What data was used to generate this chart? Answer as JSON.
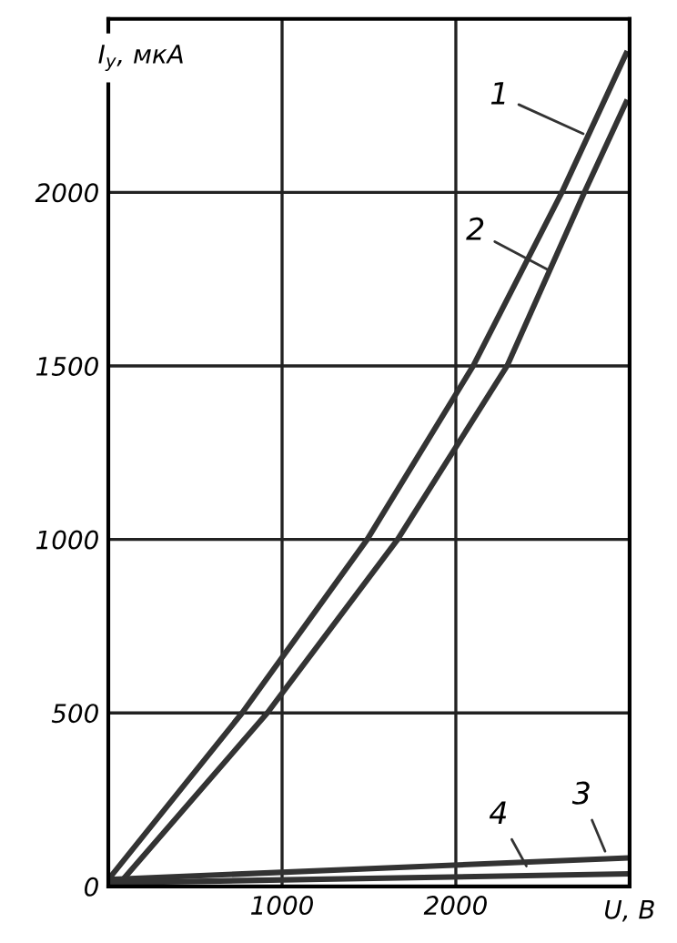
{
  "chart_data": {
    "type": "line",
    "xlabel": "U, В",
    "ylabel": "I$_{y}$, мкА",
    "xlim": [
      0,
      3000
    ],
    "ylim": [
      0,
      2500
    ],
    "xticks": [
      {
        "value": 0,
        "label": null
      },
      1000,
      2000
    ],
    "yticks": [
      0,
      500,
      1000,
      1500,
      2000
    ],
    "grid": true,
    "line_style": "solid",
    "marker": "none",
    "series": [
      {
        "color": "#333333",
        "x": [
          0,
          770,
          1490,
          2100,
          2610,
          2980
        ],
        "values": [
          20,
          500,
          1000,
          1500,
          2000,
          2400
        ]
      },
      {
        "color": "#333333",
        "x": [
          50,
          915,
          1665,
          2295,
          2740,
          2980
        ],
        "values": [
          0,
          500,
          1000,
          1500,
          2000,
          2260
        ]
      },
      {
        "color": "#333333",
        "x": [
          0,
          2980
        ],
        "values": [
          20,
          82
        ]
      },
      {
        "color": "#333333",
        "x": [
          0,
          2980
        ],
        "values": [
          10,
          36
        ]
      }
    ],
    "annotations": [
      {
        "text": "1",
        "x": 2760,
        "y": 2163
      },
      {
        "text": "2",
        "x": 2550,
        "y": 1772
      },
      {
        "text": "3",
        "x": 2870,
        "y": 88
      },
      {
        "text": "4",
        "x": 2420,
        "y": 46
      }
    ]
  }
}
